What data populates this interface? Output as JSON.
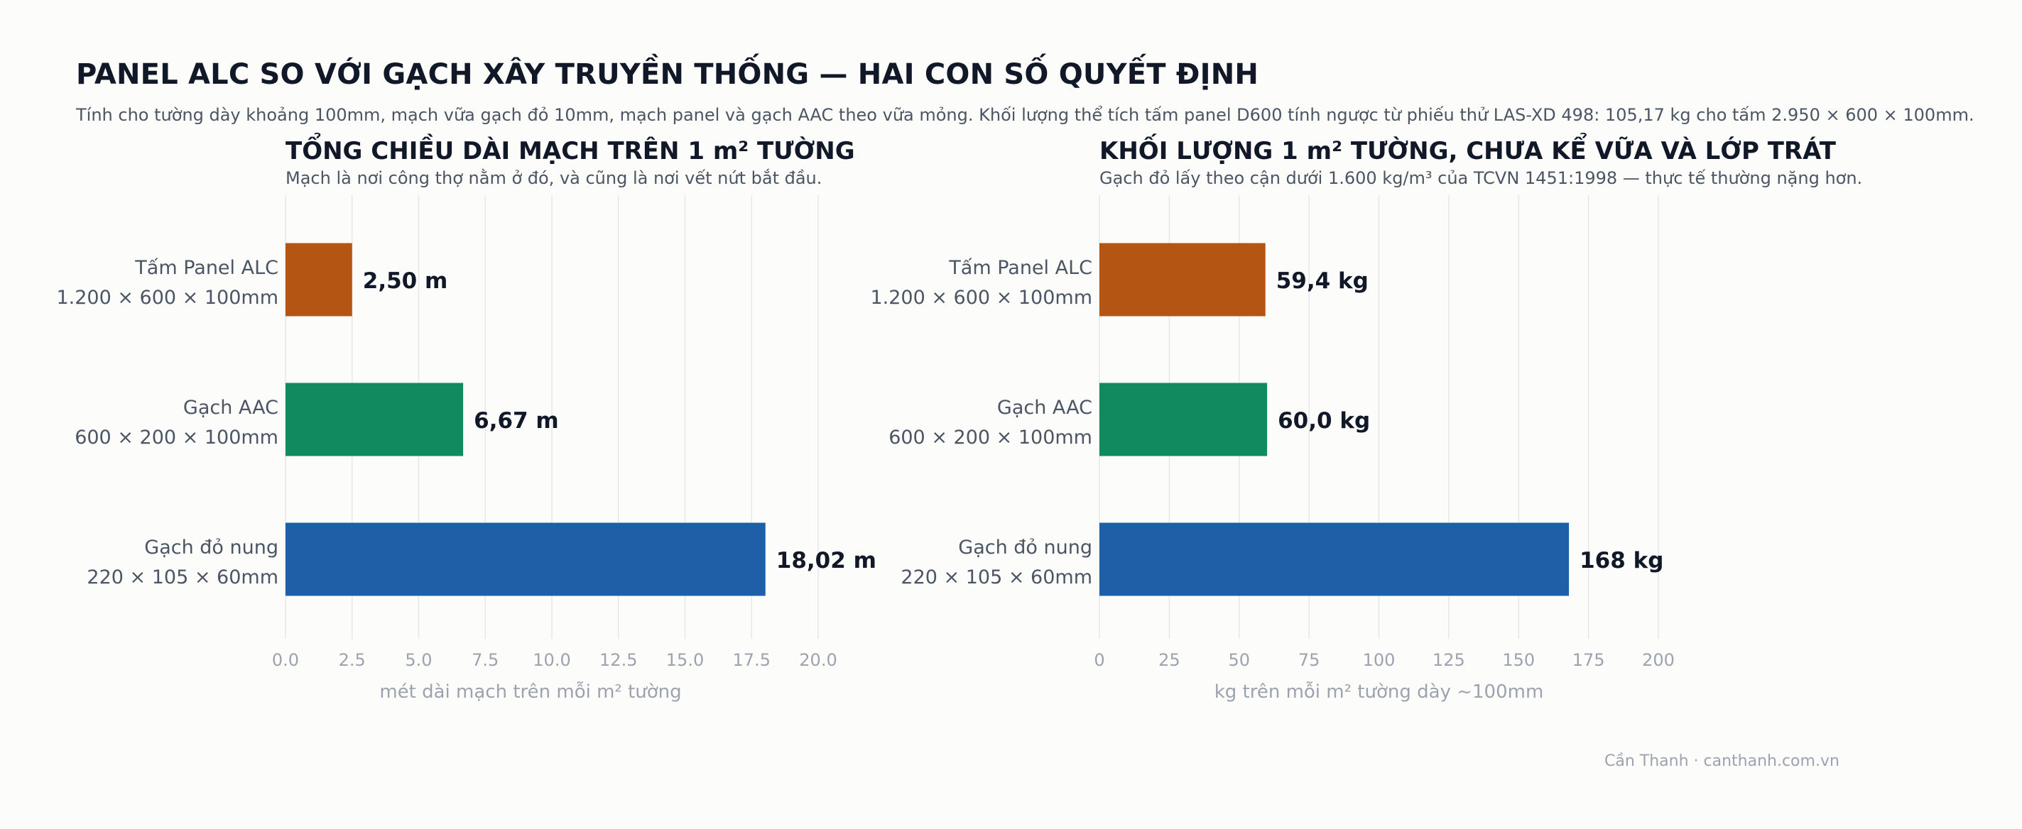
{
  "title": "PANEL ALC SO VỚI GẠCH XÂY TRUYỀN THỐNG — HAI CON SỐ QUYẾT ĐỊNH",
  "subtitle": "Tính cho tường dày khoảng 100mm, mạch vữa gạch đỏ 10mm, mạch panel và gạch AAC theo vữa mỏng. Khối lượng thể tích tấm panel D600 tính ngược từ phiếu thử LAS-XD 498: 105,17 kg cho tấm 2.950 × 600 × 100mm.",
  "credit": "Cần Thanh · canthanh.com.vn",
  "colors": {
    "panel": "#b45513",
    "aac": "#118a60",
    "brick": "#1f5fa8",
    "grid": "#e5e7eb",
    "tick": "#9ca3af",
    "label": "#4b5563",
    "value": "#111827"
  },
  "chart_data": [
    {
      "type": "bar",
      "orientation": "horizontal",
      "title": "TỔNG CHIỀU DÀI MẠCH TRÊN 1 m² TƯỜNG",
      "subtitle": "Mạch là nơi công thợ nằm ở đó, và cũng là nơi vết nứt bắt đầu.",
      "categories": [
        [
          "Tấm Panel ALC",
          "1.200 × 600 × 100mm"
        ],
        [
          "Gạch AAC",
          "600 × 200 × 100mm"
        ],
        [
          "Gạch đỏ nung",
          "220 × 105 × 60mm"
        ]
      ],
      "values": [
        2.5,
        6.67,
        18.02
      ],
      "value_labels": [
        "2,50 m",
        "6,67 m",
        "18,02 m"
      ],
      "xlabel": "mét dài mạch trên mỗi m² tường",
      "xlim": [
        0,
        20
      ],
      "xticks": [
        "0.0",
        "2.5",
        "5.0",
        "7.5",
        "10.0",
        "12.5",
        "15.0",
        "17.5",
        "20.0"
      ],
      "xtick_values": [
        0,
        2.5,
        5,
        7.5,
        10,
        12.5,
        15,
        17.5,
        20
      ],
      "grid": true
    },
    {
      "type": "bar",
      "orientation": "horizontal",
      "title": "KHỐI LƯỢNG 1 m² TƯỜNG, CHƯA KỂ VỮA VÀ LỚP TRÁT",
      "subtitle": "Gạch đỏ lấy theo cận dưới 1.600 kg/m³ của TCVN 1451:1998 — thực tế thường nặng hơn.",
      "categories": [
        [
          "Tấm Panel ALC",
          "1.200 × 600 × 100mm"
        ],
        [
          "Gạch AAC",
          "600 × 200 × 100mm"
        ],
        [
          "Gạch đỏ nung",
          "220 × 105 × 60mm"
        ]
      ],
      "values": [
        59.4,
        60.0,
        168
      ],
      "value_labels": [
        "59,4 kg",
        "60,0 kg",
        "168 kg"
      ],
      "xlabel": "kg trên mỗi m² tường dày ~100mm",
      "xlim": [
        0,
        200
      ],
      "xticks": [
        "0",
        "25",
        "50",
        "75",
        "100",
        "125",
        "150",
        "175",
        "200"
      ],
      "xtick_values": [
        0,
        25,
        50,
        75,
        100,
        125,
        150,
        175,
        200
      ],
      "grid": true
    }
  ]
}
